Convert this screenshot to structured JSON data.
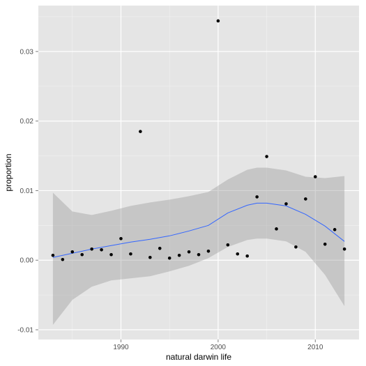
{
  "chart_data": {
    "type": "scatter",
    "title": "",
    "xlabel": "natural darwin life",
    "ylabel": "proportion",
    "xlim": [
      1981.5,
      2014.5
    ],
    "ylim": [
      -0.0114,
      0.0366
    ],
    "grid": true,
    "x_ticks": [
      1990,
      2000,
      2010
    ],
    "x_tick_labels": [
      "1990",
      "2000",
      "2010"
    ],
    "y_ticks": [
      -0.01,
      0.0,
      0.01,
      0.02,
      0.03
    ],
    "y_tick_labels": [
      "-0.01",
      "0.00",
      "0.01",
      "0.02",
      "0.03"
    ],
    "points": [
      {
        "x": 1983,
        "y": 0.0007
      },
      {
        "x": 1984,
        "y": 0.0001
      },
      {
        "x": 1985,
        "y": 0.0012
      },
      {
        "x": 1986,
        "y": 0.0008
      },
      {
        "x": 1987,
        "y": 0.0016
      },
      {
        "x": 1988,
        "y": 0.0015
      },
      {
        "x": 1989,
        "y": 0.0008
      },
      {
        "x": 1990,
        "y": 0.0031
      },
      {
        "x": 1991,
        "y": 0.0009
      },
      {
        "x": 1992,
        "y": 0.0185
      },
      {
        "x": 1993,
        "y": 0.0004
      },
      {
        "x": 1994,
        "y": 0.0017
      },
      {
        "x": 1995,
        "y": 0.0003
      },
      {
        "x": 1996,
        "y": 0.0007
      },
      {
        "x": 1997,
        "y": 0.0012
      },
      {
        "x": 1998,
        "y": 0.0008
      },
      {
        "x": 1999,
        "y": 0.0013
      },
      {
        "x": 2000,
        "y": 0.0344
      },
      {
        "x": 2001,
        "y": 0.0022
      },
      {
        "x": 2002,
        "y": 0.0009
      },
      {
        "x": 2003,
        "y": 0.0006
      },
      {
        "x": 2004,
        "y": 0.0091
      },
      {
        "x": 2005,
        "y": 0.0149
      },
      {
        "x": 2006,
        "y": 0.0045
      },
      {
        "x": 2007,
        "y": 0.0081
      },
      {
        "x": 2008,
        "y": 0.0019
      },
      {
        "x": 2009,
        "y": 0.0088
      },
      {
        "x": 2010,
        "y": 0.012
      },
      {
        "x": 2011,
        "y": 0.0023
      },
      {
        "x": 2012,
        "y": 0.0044
      },
      {
        "x": 2013,
        "y": 0.0016
      }
    ],
    "smooth": {
      "x": [
        1983,
        1985,
        1987,
        1989,
        1991,
        1993,
        1995,
        1997,
        1999,
        2001,
        2003,
        2004,
        2005,
        2007,
        2009,
        2011,
        2013
      ],
      "y": [
        0.0004,
        0.001,
        0.0016,
        0.0021,
        0.0026,
        0.003,
        0.0035,
        0.0042,
        0.005,
        0.0068,
        0.0079,
        0.0082,
        0.0082,
        0.0078,
        0.0066,
        0.0049,
        0.0027
      ],
      "lower": [
        -0.0093,
        -0.0057,
        -0.0038,
        -0.0029,
        -0.0026,
        -0.0023,
        -0.0016,
        -0.0008,
        0.0003,
        0.0019,
        0.0029,
        0.0031,
        0.0031,
        0.0027,
        0.0012,
        -0.0021,
        -0.0066
      ],
      "upper": [
        0.0097,
        0.007,
        0.0065,
        0.0071,
        0.0078,
        0.0083,
        0.0087,
        0.0092,
        0.0098,
        0.0116,
        0.013,
        0.0133,
        0.0133,
        0.0129,
        0.012,
        0.0118,
        0.0121
      ]
    },
    "colors": {
      "panel": "#e5e5e5",
      "grid_major": "#ffffff",
      "grid_minor": "#f2f2f2",
      "point": "#000000",
      "line": "#3366ff",
      "ribbon": "#999999"
    }
  }
}
